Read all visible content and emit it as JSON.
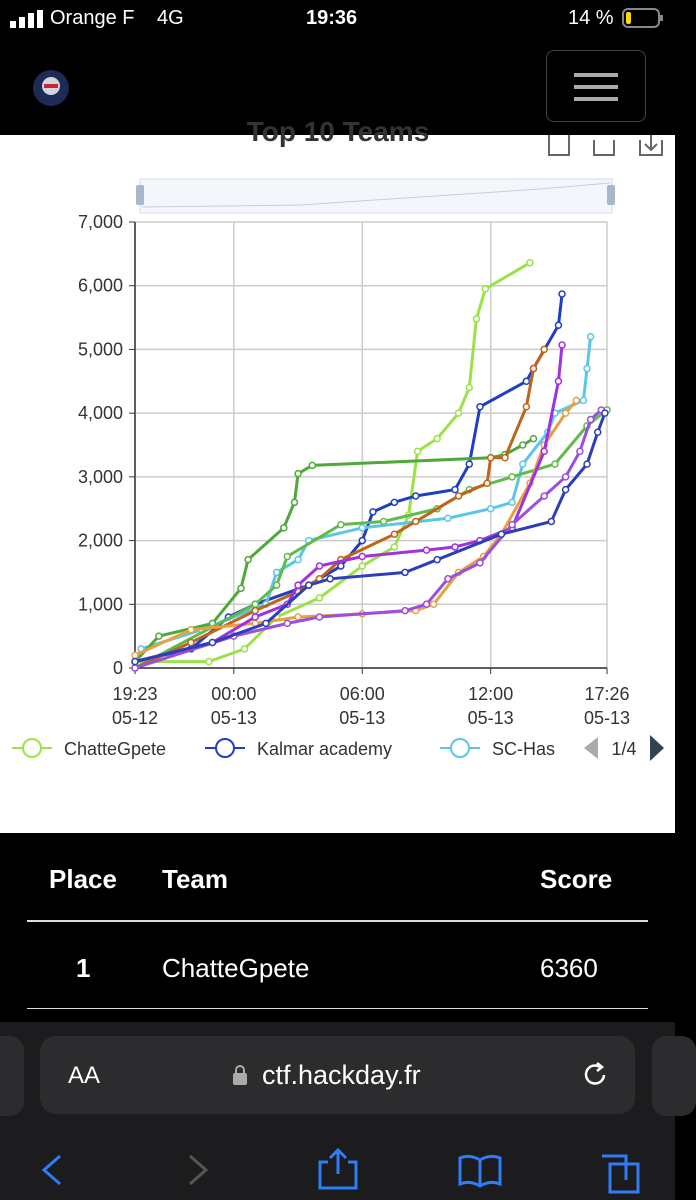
{
  "status": {
    "carrier": "Orange F",
    "network": "4G",
    "time": "19:36",
    "battery": "14 %"
  },
  "chart_data": {
    "type": "line",
    "title": "Top 10 Teams",
    "xlim": [
      "05-12 19:23",
      "05-13 17:26"
    ],
    "xticks": [
      {
        "value": "05-12 19:23",
        "label": "19:23\n05-12"
      },
      {
        "value": "05-13 00:00",
        "label": "00:00\n05-13"
      },
      {
        "value": "05-13 06:00",
        "label": "06:00\n05-13"
      },
      {
        "value": "05-13 12:00",
        "label": "12:00\n05-13"
      },
      {
        "value": "05-13 17:26",
        "label": "17:26\n05-13"
      }
    ],
    "ylim": [
      0,
      7000
    ],
    "yticks": [
      0,
      {
        "value": 1000,
        "label": "1,000"
      },
      {
        "value": 2000,
        "label": "2,000"
      },
      {
        "value": 3000,
        "label": "3,000"
      },
      {
        "value": 4000,
        "label": "4,000"
      },
      {
        "value": 5000,
        "label": "5,000"
      },
      {
        "value": 6000,
        "label": "6,000"
      },
      {
        "value": 7000,
        "label": "7,000"
      }
    ],
    "grid": true,
    "legend_page": "1/4",
    "series": [
      {
        "name": "ChatteGpete",
        "color": "#9be24a",
        "x": [
          "05-12 19:23",
          "05-12 22:50",
          "05-13 00:30",
          "05-13 02:00",
          "05-13 04:00",
          "05-13 06:00",
          "05-13 07:30",
          "05-13 08:10",
          "05-13 08:35",
          "05-13 09:30",
          "05-13 10:30",
          "05-13 11:00",
          "05-13 11:20",
          "05-13 11:45",
          "05-13 13:50"
        ],
        "values": [
          100,
          100,
          300,
          800,
          1100,
          1600,
          1900,
          2400,
          3400,
          3600,
          4000,
          4400,
          5480,
          5950,
          6360
        ]
      },
      {
        "name": "Kalmar academy",
        "color": "#1f3ec4",
        "x": [
          "05-12 19:23",
          "05-12 22:00",
          "05-12 23:45",
          "05-13 01:00",
          "05-13 03:30",
          "05-13 05:00",
          "05-13 06:00",
          "05-13 06:30",
          "05-13 07:30",
          "05-13 08:30",
          "05-13 10:20",
          "05-13 11:00",
          "05-13 11:30",
          "05-13 13:40",
          "05-13 14:00",
          "05-13 15:10",
          "05-13 15:20"
        ],
        "values": [
          100,
          300,
          800,
          1000,
          1300,
          1600,
          2000,
          2450,
          2600,
          2700,
          2800,
          3200,
          4100,
          4500,
          4700,
          5380,
          5870
        ]
      },
      {
        "name": "SC-Has",
        "color": "#5cc6e8",
        "x": [
          "05-12 19:23",
          "05-12 19:40",
          "05-12 22:30",
          "05-13 01:30",
          "05-13 02:00",
          "05-13 03:00",
          "05-13 03:30",
          "05-13 06:00",
          "05-13 10:00",
          "05-13 12:00",
          "05-13 13:00",
          "05-13 13:30",
          "05-13 14:40",
          "05-13 15:00",
          "05-13 16:20",
          "05-13 16:30",
          "05-13 16:40"
        ],
        "values": [
          100,
          300,
          600,
          1000,
          1500,
          1700,
          2000,
          2200,
          2350,
          2500,
          2600,
          3200,
          3700,
          4000,
          4200,
          4700,
          5200
        ]
      },
      {
        "color": "#4fa83a",
        "x": [
          "05-12 19:23",
          "05-12 20:30",
          "05-12 23:00",
          "05-13 00:20",
          "05-13 00:40",
          "05-13 02:20",
          "05-13 02:50",
          "05-13 03:00",
          "05-13 03:40",
          "05-13 12:00",
          "05-13 12:40",
          "05-13 13:30",
          "05-13 14:00"
        ],
        "values": [
          100,
          500,
          700,
          1250,
          1700,
          2200,
          2600,
          3050,
          3180,
          3300,
          3350,
          3500,
          3600
        ]
      },
      {
        "color": "#5fbb4a",
        "x": [
          "05-12 19:23",
          "05-13 01:00",
          "05-13 02:00",
          "05-13 02:30",
          "05-13 05:00",
          "05-13 07:00",
          "05-13 09:30",
          "05-13 11:00",
          "05-13 13:00",
          "05-13 15:00",
          "05-13 16:30",
          "05-13 17:26"
        ],
        "values": [
          0,
          1000,
          1300,
          1750,
          2250,
          2300,
          2500,
          2800,
          3000,
          3200,
          3800,
          4050
        ]
      },
      {
        "color": "#c0641a",
        "x": [
          "05-12 19:23",
          "05-12 22:00",
          "05-13 01:00",
          "05-13 03:00",
          "05-13 04:00",
          "05-13 05:00",
          "05-13 07:30",
          "05-13 08:30",
          "05-13 10:30",
          "05-13 11:50",
          "05-13 12:00",
          "05-13 12:40",
          "05-13 13:40",
          "05-13 14:00",
          "05-13 14:30"
        ],
        "values": [
          0,
          400,
          900,
          1200,
          1400,
          1700,
          2100,
          2300,
          2700,
          2900,
          3300,
          3300,
          4100,
          4700,
          5000
        ]
      },
      {
        "color": "#e8a040",
        "x": [
          "05-12 19:23",
          "05-12 22:00",
          "05-13 01:00",
          "05-13 03:00",
          "05-13 06:00",
          "05-13 08:30",
          "05-13 09:20",
          "05-13 10:30",
          "05-13 11:40",
          "05-13 12:30",
          "05-13 13:50",
          "05-13 14:30",
          "05-13 15:30",
          "05-13 16:00"
        ],
        "values": [
          200,
          600,
          700,
          800,
          850,
          900,
          1000,
          1500,
          1750,
          2100,
          2900,
          3500,
          4000,
          4200
        ]
      },
      {
        "color": "#a030e0",
        "x": [
          "05-12 19:23",
          "05-12 23:00",
          "05-13 01:00",
          "05-13 02:30",
          "05-13 03:00",
          "05-13 04:00",
          "05-13 06:00",
          "05-13 09:00",
          "05-13 10:20",
          "05-13 11:30",
          "05-13 13:00",
          "05-13 14:30",
          "05-13 15:10",
          "05-13 15:20"
        ],
        "values": [
          100,
          400,
          800,
          1000,
          1300,
          1600,
          1750,
          1850,
          1900,
          2000,
          2200,
          3400,
          4500,
          5070
        ]
      },
      {
        "color": "#9b4ee0",
        "x": [
          "05-12 19:23",
          "05-13 00:00",
          "05-13 02:30",
          "05-13 04:00",
          "05-13 08:00",
          "05-13 09:00",
          "05-13 10:00",
          "05-13 11:30",
          "05-13 13:00",
          "05-13 14:30",
          "05-13 15:30",
          "05-13 16:10",
          "05-13 16:40",
          "05-13 17:10"
        ],
        "values": [
          0,
          500,
          700,
          800,
          900,
          1000,
          1400,
          1650,
          2250,
          2700,
          3000,
          3400,
          3900,
          4050
        ]
      },
      {
        "color": "#2d3fb8",
        "x": [
          "05-12 19:23",
          "05-12 23:00",
          "05-13 01:30",
          "05-13 03:30",
          "05-13 04:30",
          "05-13 08:00",
          "05-13 09:30",
          "05-13 12:30",
          "05-13 14:50",
          "05-13 15:30",
          "05-13 16:30",
          "05-13 17:00",
          "05-13 17:20"
        ],
        "values": [
          100,
          400,
          700,
          1300,
          1400,
          1500,
          1700,
          2100,
          2300,
          2800,
          3200,
          3700,
          4000
        ]
      }
    ]
  },
  "table": {
    "headers": [
      "Place",
      "Team",
      "Score"
    ],
    "rows": [
      [
        1,
        "ChatteGpete",
        6360
      ]
    ]
  },
  "browser": {
    "text_size": "AA",
    "url": "ctf.hackday.fr"
  }
}
